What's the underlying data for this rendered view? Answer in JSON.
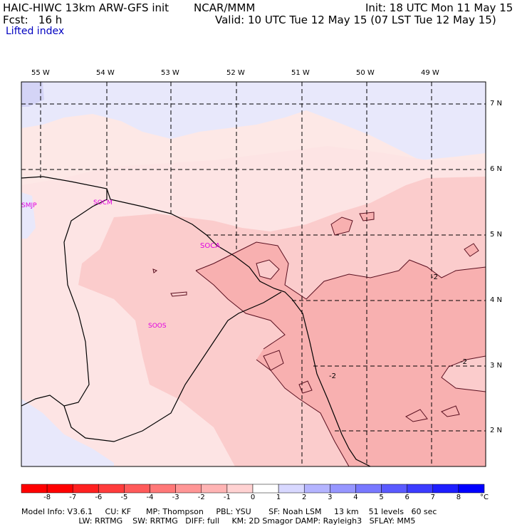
{
  "header": {
    "model": "HAIC-HIWC 13km ARW-GFS init",
    "org": "NCAR/MMM",
    "init": "Init: 18 UTC Mon 11 May 15",
    "fcst": "Fcst:   16 h",
    "valid": "Valid: 10 UTC Tue 12 May 15 (07 LST Tue 12 May 15)",
    "field": "Lifted index"
  },
  "map": {
    "lon_labels": [
      "55 W",
      "54 W",
      "53 W",
      "52 W",
      "51 W",
      "50 W",
      "49 W"
    ],
    "lat_labels": [
      "7 N",
      "6 N",
      "5 N",
      "4 N",
      "3 N",
      "2 N"
    ],
    "stations": [
      "SMJP",
      "SOCM",
      "SOCA",
      "SOOS"
    ],
    "contour_labels": [
      "-2",
      "-2",
      "-2"
    ],
    "colors": {
      "neg1": "#fde4e4",
      "neg2": "#fbcccc",
      "neg3": "#f8a8a8",
      "pos1": "#e8e8fb",
      "neutral": "#fff4f2",
      "station": "#e000e0"
    }
  },
  "colorbar": {
    "labels": [
      "-8",
      "-7",
      "-6",
      "-5",
      "-4",
      "-3",
      "-2",
      "-1",
      "0",
      "1",
      "2",
      "3",
      "4",
      "5",
      "6",
      "7",
      "8"
    ],
    "unit": "°C",
    "colors": [
      "#ff0000",
      "#ff2020",
      "#ff3c3c",
      "#ff5a5a",
      "#ff7878",
      "#ff9696",
      "#ffb4b4",
      "#ffd2d2",
      "#ffffff",
      "#d8d8ff",
      "#b4b4ff",
      "#9696ff",
      "#7878ff",
      "#5a5aff",
      "#3c3cff",
      "#1e1eff",
      "#0000ff"
    ]
  },
  "footer": {
    "line1": "Model Info: V3.6.1     CU: KF      MP: Thompson     PBL: YSU       SF: Noah LSM     13 km    51 levels   60 sec",
    "line2": "                       LW: RRTMG    SW: RRTMG   DIFF: full     KM: 2D Smagor DAMP: Rayleigh3   SFLAY: MM5"
  }
}
